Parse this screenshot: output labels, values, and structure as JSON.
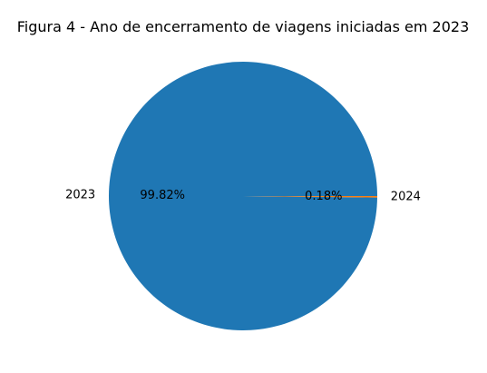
{
  "chart_data": {
    "type": "pie",
    "title": "Figura 4 - Ano de encerramento de viagens iniciadas em 2023",
    "categories": [
      "2023",
      "2024"
    ],
    "values": [
      99.82,
      0.18
    ],
    "value_labels": [
      "99.82%",
      "0.18%"
    ],
    "colors": [
      "#1f77b4",
      "#ff7f0e"
    ],
    "start_angle_deg": 0,
    "direction": "counterclockwise"
  }
}
